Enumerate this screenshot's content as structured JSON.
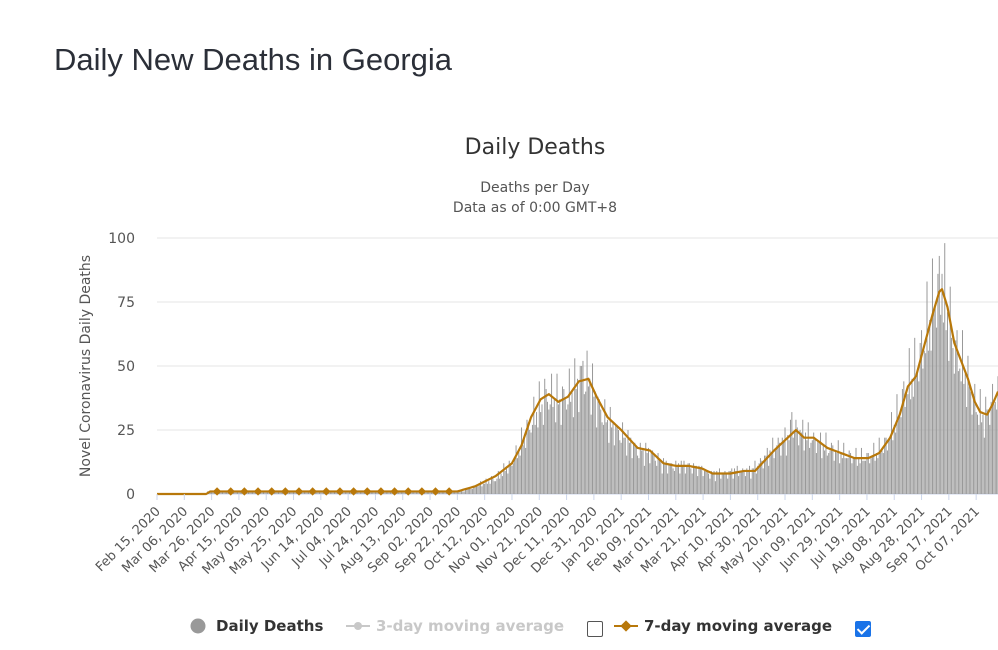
{
  "page": {
    "title": "Daily New Deaths in Georgia"
  },
  "chart_data": {
    "type": "bar",
    "title": "Daily Deaths",
    "subtitle_lines": [
      "Deaths per Day",
      "Data as of 0:00 GMT+8"
    ],
    "xlabel": "",
    "ylabel": "Novel Coronavirus Daily Deaths",
    "ylim": [
      0,
      100
    ],
    "yticks": [
      0,
      25,
      50,
      75,
      100
    ],
    "grid": true,
    "x_start": "2020-02-15",
    "x_end": "2021-10-23",
    "xtick_labels": [
      "Feb 15, 2020",
      "Mar 06, 2020",
      "Mar 26, 2020",
      "Apr 15, 2020",
      "May 05, 2020",
      "May 25, 2020",
      "Jun 14, 2020",
      "Jul 04, 2020",
      "Jul 24, 2020",
      "Aug 13, 2020",
      "Sep 02, 2020",
      "Sep 22, 2020",
      "Oct 12, 2020",
      "Nov 01, 2020",
      "Nov 21, 2020",
      "Dec 11, 2020",
      "Dec 31, 2020",
      "Jan 20, 2021",
      "Feb 09, 2021",
      "Mar 01, 2021",
      "Mar 21, 2021",
      "Apr 10, 2021",
      "Apr 30, 2021",
      "May 20, 2021",
      "Jun 09, 2021",
      "Jun 29, 2021",
      "Jul 19, 2021",
      "Aug 08, 2021",
      "Aug 28, 2021",
      "Sep 17, 2021",
      "Oct 07, 2021"
    ],
    "legend_position": "bottom",
    "series": [
      {
        "name": "Daily Deaths",
        "kind": "bar",
        "color": "#999999",
        "description": "Daily reported deaths; approximate trend read off the chart (date, deaths)",
        "trend_points": [
          [
            "2020-02-15",
            0
          ],
          [
            "2020-03-22",
            0
          ],
          [
            "2020-03-23",
            1
          ],
          [
            "2020-09-25",
            1
          ],
          [
            "2020-10-05",
            3
          ],
          [
            "2020-10-20",
            6
          ],
          [
            "2020-11-01",
            12
          ],
          [
            "2020-11-10",
            22
          ],
          [
            "2020-11-20",
            33
          ],
          [
            "2020-11-28",
            38
          ],
          [
            "2020-12-06",
            36
          ],
          [
            "2020-12-14",
            39
          ],
          [
            "2020-12-22",
            45
          ],
          [
            "2020-12-28",
            44
          ],
          [
            "2021-01-03",
            34
          ],
          [
            "2021-01-12",
            27
          ],
          [
            "2021-01-22",
            22
          ],
          [
            "2021-02-01",
            17
          ],
          [
            "2021-02-10",
            16
          ],
          [
            "2021-02-18",
            12
          ],
          [
            "2021-03-01",
            11
          ],
          [
            "2021-03-10",
            11
          ],
          [
            "2021-03-18",
            10
          ],
          [
            "2021-03-25",
            8
          ],
          [
            "2021-04-05",
            8
          ],
          [
            "2021-04-15",
            9
          ],
          [
            "2021-04-25",
            9
          ],
          [
            "2021-05-02",
            12
          ],
          [
            "2021-05-10",
            17
          ],
          [
            "2021-05-20",
            21
          ],
          [
            "2021-05-28",
            25
          ],
          [
            "2021-06-03",
            23
          ],
          [
            "2021-06-10",
            21
          ],
          [
            "2021-06-20",
            18
          ],
          [
            "2021-06-30",
            16
          ],
          [
            "2021-07-10",
            14
          ],
          [
            "2021-07-20",
            14
          ],
          [
            "2021-07-28",
            17
          ],
          [
            "2021-08-03",
            20
          ],
          [
            "2021-08-10",
            30
          ],
          [
            "2021-08-17",
            42
          ],
          [
            "2021-08-22",
            46
          ],
          [
            "2021-08-28",
            55
          ],
          [
            "2021-09-03",
            68
          ],
          [
            "2021-09-08",
            78
          ],
          [
            "2021-09-11",
            80
          ],
          [
            "2021-09-15",
            73
          ],
          [
            "2021-09-20",
            58
          ],
          [
            "2021-09-25",
            52
          ],
          [
            "2021-09-30",
            45
          ],
          [
            "2021-10-05",
            37
          ],
          [
            "2021-10-09",
            32
          ],
          [
            "2021-10-13",
            30
          ],
          [
            "2021-10-18",
            35
          ],
          [
            "2021-10-23",
            41
          ]
        ],
        "peaks": [
          [
            "2020-11-25",
            45
          ],
          [
            "2020-12-23",
            52
          ],
          [
            "2021-05-25",
            32
          ],
          [
            "2021-09-12",
            86
          ],
          [
            "2021-10-23",
            46
          ]
        ]
      },
      {
        "name": "3-day moving average",
        "kind": "line",
        "color": "#c8c8c8",
        "visible": false
      },
      {
        "name": "7-day moving average",
        "kind": "line",
        "color": "#b8780a",
        "visible": true,
        "points": [
          [
            "2020-02-15",
            0
          ],
          [
            "2020-03-22",
            0
          ],
          [
            "2020-03-25",
            1
          ],
          [
            "2020-05-01",
            1
          ],
          [
            "2020-08-01",
            1
          ],
          [
            "2020-09-22",
            1
          ],
          [
            "2020-10-05",
            3
          ],
          [
            "2020-10-20",
            7
          ],
          [
            "2020-11-01",
            12
          ],
          [
            "2020-11-08",
            19
          ],
          [
            "2020-11-15",
            30
          ],
          [
            "2020-11-22",
            37
          ],
          [
            "2020-11-28",
            39
          ],
          [
            "2020-12-05",
            36
          ],
          [
            "2020-12-12",
            38
          ],
          [
            "2020-12-20",
            44
          ],
          [
            "2020-12-27",
            45
          ],
          [
            "2021-01-02",
            38
          ],
          [
            "2021-01-10",
            30
          ],
          [
            "2021-01-20",
            25
          ],
          [
            "2021-02-01",
            18
          ],
          [
            "2021-02-10",
            17
          ],
          [
            "2021-02-20",
            12
          ],
          [
            "2021-03-01",
            11
          ],
          [
            "2021-03-10",
            11
          ],
          [
            "2021-03-20",
            10
          ],
          [
            "2021-03-28",
            8
          ],
          [
            "2021-04-10",
            8
          ],
          [
            "2021-04-20",
            9
          ],
          [
            "2021-04-28",
            9
          ],
          [
            "2021-05-05",
            13
          ],
          [
            "2021-05-12",
            17
          ],
          [
            "2021-05-20",
            21
          ],
          [
            "2021-05-28",
            25
          ],
          [
            "2021-06-03",
            22
          ],
          [
            "2021-06-10",
            22
          ],
          [
            "2021-06-20",
            18
          ],
          [
            "2021-06-30",
            16
          ],
          [
            "2021-07-10",
            14
          ],
          [
            "2021-07-20",
            14
          ],
          [
            "2021-07-28",
            16
          ],
          [
            "2021-08-05",
            22
          ],
          [
            "2021-08-12",
            31
          ],
          [
            "2021-08-18",
            42
          ],
          [
            "2021-08-24",
            46
          ],
          [
            "2021-08-30",
            58
          ],
          [
            "2021-09-05",
            70
          ],
          [
            "2021-09-10",
            79
          ],
          [
            "2021-09-12",
            80
          ],
          [
            "2021-09-16",
            73
          ],
          [
            "2021-09-21",
            59
          ],
          [
            "2021-09-26",
            52
          ],
          [
            "2021-10-01",
            45
          ],
          [
            "2021-10-06",
            36
          ],
          [
            "2021-10-10",
            32
          ],
          [
            "2021-10-15",
            31
          ],
          [
            "2021-10-19",
            35
          ],
          [
            "2021-10-23",
            40
          ]
        ]
      }
    ]
  },
  "legend": {
    "daily_label": "Daily Deaths",
    "ma3_label": "3-day moving average",
    "ma7_label": "7-day moving average",
    "ma3_checked": false,
    "ma7_checked": true
  },
  "colors": {
    "bar": "#999999",
    "ma7": "#b8780a",
    "ma3": "#c8c8c8",
    "grid": "#e6e6e6",
    "checkbox": "#1a73e8"
  }
}
